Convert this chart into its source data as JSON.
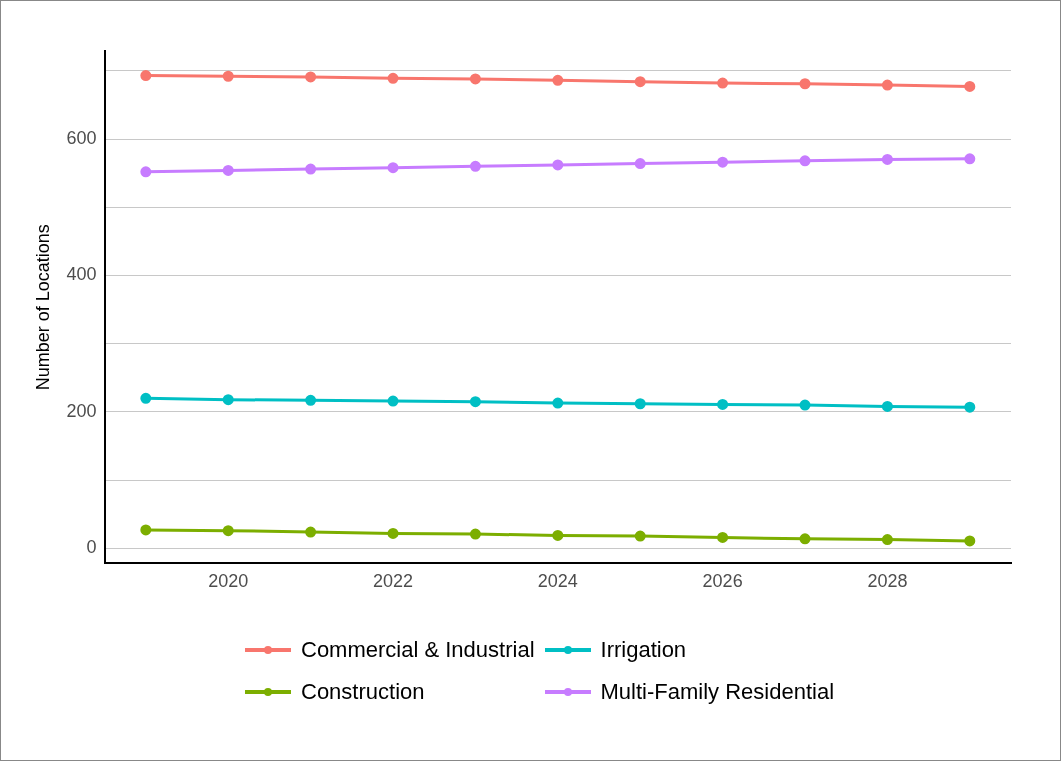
{
  "chart_data": {
    "type": "line",
    "ylabel": "Number of Locations",
    "x": [
      2019,
      2020,
      2021,
      2022,
      2023,
      2024,
      2025,
      2026,
      2027,
      2028,
      2029
    ],
    "xlim": [
      2018.5,
      2029.5
    ],
    "xticks": [
      2020,
      2022,
      2024,
      2026,
      2028
    ],
    "ylim": [
      -22,
      729
    ],
    "yticks": [
      0,
      {
        "value": 100,
        "label": null
      },
      200,
      {
        "value": 300,
        "label": null
      },
      400,
      {
        "value": 500,
        "label": null
      },
      600,
      {
        "value": 700,
        "label": null
      }
    ],
    "grid": "y",
    "legend": "bottom",
    "marker": "circle",
    "line_style": "solid",
    "series": [
      {
        "name": "Commercial & Industrial",
        "color": "#f8766d",
        "values": [
          693,
          692,
          691,
          689,
          688,
          686,
          684,
          682,
          681,
          679,
          677
        ]
      },
      {
        "name": "Irrigation",
        "color": "#00bfc4",
        "values": [
          220,
          218,
          217,
          216,
          215,
          213,
          212,
          211,
          210,
          208,
          207
        ]
      },
      {
        "name": "Construction",
        "color": "#7cae00",
        "values": [
          27,
          26,
          24,
          22,
          21,
          19,
          18,
          16,
          14,
          13,
          11
        ]
      },
      {
        "name": "Multi-Family Residential",
        "color": "#c77cff",
        "values": [
          552,
          554,
          556,
          558,
          560,
          562,
          564,
          566,
          568,
          570,
          571
        ]
      }
    ]
  }
}
